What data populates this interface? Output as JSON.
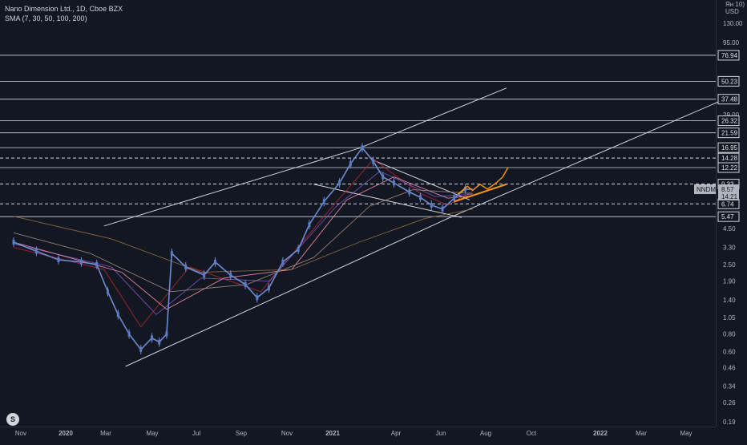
{
  "header": {
    "title": "Nano Dimension Ltd., 1D, Cboe BZX",
    "indicator": "SMA (7, 30, 50, 100, 200)"
  },
  "axis": {
    "currency_lines": [
      "Ян 10)",
      "USD"
    ],
    "price_ticks": [
      130.0,
      95.0,
      29.0,
      8.57,
      4.5,
      3.3,
      2.5,
      1.9,
      1.4,
      1.05,
      0.8,
      0.6,
      0.46,
      0.34,
      0.26,
      0.19
    ],
    "tick_labels": [
      "130.00",
      "95.00",
      "29.00",
      "8.57",
      "4.50",
      "3.30",
      "2.50",
      "1.90",
      "1.40",
      "1.05",
      "0.80",
      "0.60",
      "0.46",
      "0.34",
      "0.26",
      "0.19"
    ],
    "time_labels": [
      "Nov",
      "2020",
      "Mar",
      "May",
      "Jul",
      "Sep",
      "Nov",
      "2021",
      "Apr",
      "Jun",
      "Aug",
      "Oct",
      "2022",
      "Mar",
      "May"
    ]
  },
  "chart_data": {
    "type": "line",
    "title": "Nano Dimension Ltd., 1D, Cboe BZX",
    "symbol": "NNDM",
    "y_scale": "log",
    "ylim": [
      0.19,
      130
    ],
    "x_range": [
      "2019-10-20",
      "2022-06-10"
    ],
    "last_price": 8.57,
    "countdown": "14:21",
    "horizontal_levels": [
      76.94,
      50.23,
      37.48,
      26.32,
      21.59,
      16.95,
      14.28,
      12.22,
      9.33,
      6.74,
      5.47
    ],
    "level_labels": [
      "76.94",
      "50.23",
      "37.48",
      "26.32",
      "21.59",
      "16.95",
      "14.28",
      "12.22",
      "9.33",
      "6.74",
      "5.47"
    ],
    "dashed_levels": [
      14.28,
      9.33,
      6.74
    ],
    "price_path": [
      [
        "2019-10-20",
        3.6
      ],
      [
        "2019-11-20",
        3.1
      ],
      [
        "2019-12-20",
        2.7
      ],
      [
        "2020-01-20",
        2.6
      ],
      [
        "2020-02-10",
        2.5
      ],
      [
        "2020-02-25",
        1.6
      ],
      [
        "2020-03-10",
        1.1
      ],
      [
        "2020-03-25",
        0.8
      ],
      [
        "2020-04-10",
        0.62
      ],
      [
        "2020-04-25",
        0.75
      ],
      [
        "2020-05-05",
        0.7
      ],
      [
        "2020-05-15",
        0.8
      ],
      [
        "2020-05-22",
        3.0
      ],
      [
        "2020-06-10",
        2.4
      ],
      [
        "2020-07-05",
        2.1
      ],
      [
        "2020-07-20",
        2.6
      ],
      [
        "2020-08-10",
        2.1
      ],
      [
        "2020-08-30",
        1.8
      ],
      [
        "2020-09-15",
        1.45
      ],
      [
        "2020-10-01",
        1.7
      ],
      [
        "2020-10-20",
        2.6
      ],
      [
        "2020-11-10",
        3.2
      ],
      [
        "2020-11-25",
        4.8
      ],
      [
        "2020-12-15",
        7.0
      ],
      [
        "2021-01-05",
        9.5
      ],
      [
        "2021-01-20",
        13.0
      ],
      [
        "2021-02-05",
        16.9
      ],
      [
        "2021-02-20",
        13.5
      ],
      [
        "2021-03-05",
        10.5
      ],
      [
        "2021-03-20",
        9.5
      ],
      [
        "2021-04-10",
        8.2
      ],
      [
        "2021-04-25",
        7.5
      ],
      [
        "2021-05-10",
        6.6
      ],
      [
        "2021-05-25",
        6.2
      ],
      [
        "2021-06-10",
        7.4
      ],
      [
        "2021-06-25",
        8.6
      ],
      [
        "2021-07-05",
        8.57
      ]
    ],
    "sma_series": [
      {
        "color": "#b22833",
        "values": [
          [
            "2019-10-20",
            3.3
          ],
          [
            "2020-02-20",
            2.3
          ],
          [
            "2020-04-10",
            0.9
          ],
          [
            "2020-06-15",
            2.4
          ],
          [
            "2020-09-20",
            1.6
          ],
          [
            "2020-12-15",
            5.5
          ],
          [
            "2021-02-20",
            14.0
          ],
          [
            "2021-04-25",
            8.0
          ],
          [
            "2021-06-01",
            6.6
          ],
          [
            "2021-07-05",
            8.3
          ]
        ]
      },
      {
        "color": "#7e57c2",
        "values": [
          [
            "2019-10-20",
            3.5
          ],
          [
            "2020-03-01",
            2.4
          ],
          [
            "2020-05-01",
            1.1
          ],
          [
            "2020-07-01",
            2.0
          ],
          [
            "2020-10-01",
            1.9
          ],
          [
            "2021-01-01",
            6.5
          ],
          [
            "2021-03-01",
            11.5
          ],
          [
            "2021-05-15",
            7.6
          ],
          [
            "2021-07-05",
            7.9
          ]
        ]
      },
      {
        "color": "#f48fb1",
        "values": [
          [
            "2019-10-20",
            3.6
          ],
          [
            "2020-03-15",
            2.2
          ],
          [
            "2020-05-15",
            1.2
          ],
          [
            "2020-08-01",
            2.0
          ],
          [
            "2020-11-01",
            2.3
          ],
          [
            "2021-01-15",
            7.2
          ],
          [
            "2021-03-20",
            10.5
          ],
          [
            "2021-06-01",
            7.4
          ],
          [
            "2021-07-05",
            7.7
          ]
        ]
      },
      {
        "color": "#a1887f",
        "values": [
          [
            "2019-10-20",
            4.2
          ],
          [
            "2020-02-01",
            3.0
          ],
          [
            "2020-05-20",
            1.6
          ],
          [
            "2020-09-01",
            1.8
          ],
          [
            "2020-12-01",
            2.8
          ],
          [
            "2021-02-15",
            6.5
          ],
          [
            "2021-04-15",
            8.5
          ],
          [
            "2021-07-05",
            8.0
          ]
        ]
      },
      {
        "color": "#8d6e4a",
        "values": [
          [
            "2019-10-20",
            5.5
          ],
          [
            "2020-03-01",
            3.8
          ],
          [
            "2020-07-01",
            2.2
          ],
          [
            "2020-11-01",
            2.3
          ],
          [
            "2021-02-01",
            3.6
          ],
          [
            "2021-05-01",
            5.3
          ],
          [
            "2021-07-05",
            6.2
          ]
        ]
      }
    ],
    "projection_path": [
      [
        "2021-06-15",
        7.9
      ],
      [
        "2021-06-28",
        9.0
      ],
      [
        "2021-07-05",
        8.4
      ],
      [
        "2021-07-15",
        9.3
      ],
      [
        "2021-07-25",
        8.6
      ],
      [
        "2021-08-05",
        9.4
      ],
      [
        "2021-08-15",
        10.5
      ],
      [
        "2021-08-22",
        12.2
      ]
    ],
    "projection_trend": [
      [
        "2021-06-10",
        7.0
      ],
      [
        "2021-08-20",
        9.3
      ]
    ],
    "trendlines": [
      [
        [
          "2020-03-20",
          0.47
        ],
        [
          "2021-06-01",
          5.3
        ],
        [
          "2022-06-10",
          37.0
        ]
      ],
      [
        [
          "2020-02-20",
          4.7
        ],
        [
          "2021-02-01",
          16.8
        ],
        [
          "2021-08-20",
          45.0
        ]
      ],
      [
        [
          "2020-12-01",
          9.3
        ],
        [
          "2021-06-20",
          5.4
        ]
      ],
      [
        [
          "2021-02-20",
          13.8
        ],
        [
          "2021-07-01",
          7.2
        ]
      ]
    ]
  }
}
